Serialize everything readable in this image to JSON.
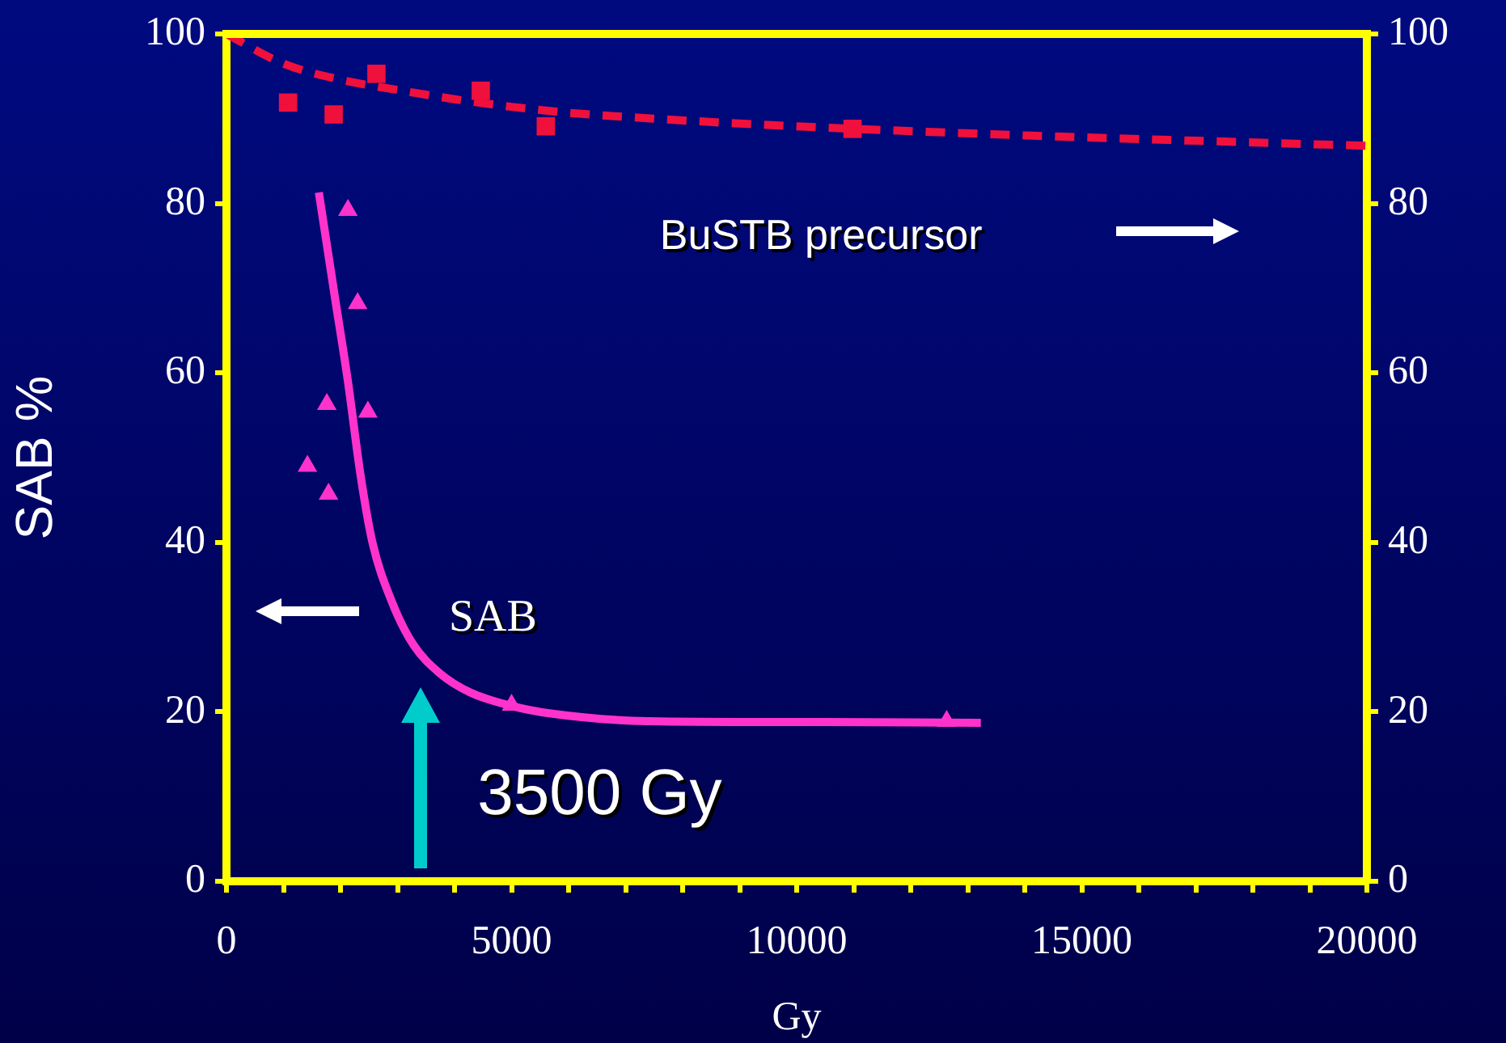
{
  "chart_data": {
    "type": "scatter",
    "ylabel": "SAB %",
    "xlabel": "Gy",
    "xlim": [
      0,
      20000
    ],
    "xticks": [
      0,
      {
        "value": 1000,
        "label": null
      },
      {
        "value": 2000,
        "label": null
      },
      {
        "value": 3000,
        "label": null
      },
      {
        "value": 4000,
        "label": null
      },
      5000,
      {
        "value": 6000,
        "label": null
      },
      {
        "value": 7000,
        "label": null
      },
      {
        "value": 8000,
        "label": null
      },
      {
        "value": 9000,
        "label": null
      },
      10000,
      {
        "value": 11000,
        "label": null
      },
      {
        "value": 12000,
        "label": null
      },
      {
        "value": 13000,
        "label": null
      },
      {
        "value": 14000,
        "label": null
      },
      15000,
      {
        "value": 16000,
        "label": null
      },
      {
        "value": 17000,
        "label": null
      },
      {
        "value": 18000,
        "label": null
      },
      {
        "value": 19000,
        "label": null
      },
      20000
    ],
    "ylim": [
      0,
      100
    ],
    "yticks": [
      0,
      20,
      40,
      60,
      80,
      100
    ],
    "y2lim": [
      0,
      100
    ],
    "y2ticks": [
      0,
      20,
      40,
      60,
      80,
      100
    ],
    "grid": false,
    "legend": false,
    "series": [
      {
        "type": "scatter",
        "marker": "square",
        "color": "#f0103c",
        "x": [
          1080,
          1880,
          2630,
          4460,
          5600,
          10980
        ],
        "values": [
          91.9,
          90.5,
          95.3,
          93.3,
          89.1,
          88.8
        ]
      },
      {
        "type": "line",
        "marker": "none",
        "line_style": "dashed",
        "color": "#f0103c",
        "x": [
          0,
          1000,
          2000,
          3000,
          4000,
          5000,
          6000,
          7500,
          10000,
          12500,
          15000,
          17500,
          20000
        ],
        "values": [
          100,
          96.5,
          94.6,
          93.4,
          92.3,
          91.4,
          90.7,
          90,
          89.1,
          88.4,
          87.8,
          87.3,
          86.8
        ]
      },
      {
        "type": "scatter",
        "marker": "triangle",
        "color": "#ff33cc",
        "x": [
          2130,
          2300,
          1760,
          2480,
          1420,
          1790,
          5000,
          12630
        ],
        "values": [
          79.2,
          68.2,
          56.3,
          55.4,
          49,
          45.7,
          20.8,
          18.9
        ]
      },
      {
        "type": "line",
        "marker": "none",
        "line_style": "solid",
        "color": "#ff33cc",
        "x": [
          1620,
          1900,
          2130,
          2350,
          2560,
          2900,
          3270,
          3750,
          4270,
          5000,
          5690,
          7400,
          10000,
          13230
        ],
        "values": [
          81.3,
          69,
          59,
          48,
          40,
          33,
          28,
          24.5,
          22.3,
          20.7,
          19.8,
          18.9,
          18.8,
          18.7
        ]
      }
    ],
    "annotations": [
      "BuSTB precursor",
      "SAB",
      "3500 Gy"
    ]
  }
}
